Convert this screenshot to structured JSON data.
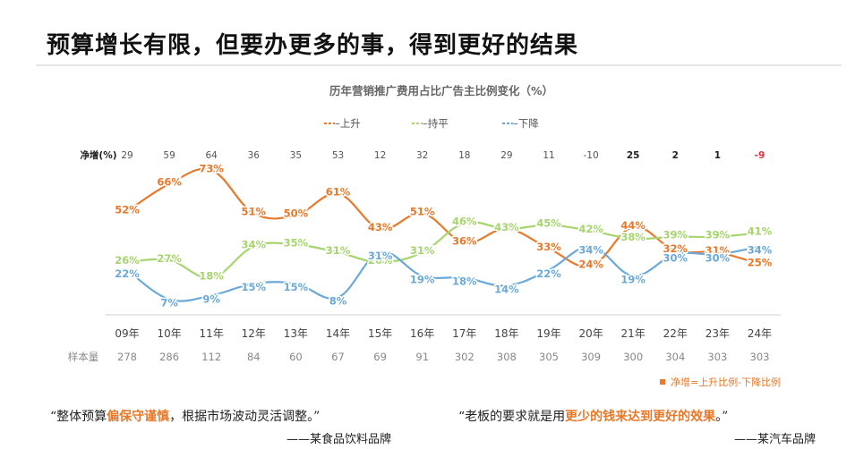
{
  "slide": {
    "title": "预算增长有限，但要办更多的事，得到更好的结果"
  },
  "chart_data": {
    "type": "line",
    "title": "历年营销推广费用占比广告主比例变化（%）",
    "categories": [
      "09年",
      "10年",
      "11年",
      "12年",
      "13年",
      "14年",
      "15年",
      "16年",
      "17年",
      "18年",
      "19年",
      "20年",
      "21年",
      "22年",
      "23年",
      "24年"
    ],
    "series": [
      {
        "name": "上升",
        "color": "#e8792b",
        "values": [
          52,
          66,
          73,
          51,
          50,
          61,
          43,
          51,
          36,
          43,
          33,
          24,
          44,
          32,
          31,
          25
        ]
      },
      {
        "name": "持平",
        "color": "#a6d46d",
        "values": [
          26,
          27,
          18,
          34,
          35,
          31,
          26,
          31,
          46,
          43,
          45,
          42,
          38,
          39,
          39,
          41
        ]
      },
      {
        "name": "下降",
        "color": "#6aa9d8",
        "values": [
          22,
          7,
          9,
          15,
          15,
          8,
          31,
          19,
          18,
          14,
          22,
          34,
          19,
          30,
          30,
          34
        ]
      }
    ],
    "legend_labels": [
      "–上升",
      "–持平",
      "–下降"
    ],
    "net_label": "净增(%)",
    "net_values": [
      "29",
      "59",
      "64",
      "36",
      "35",
      "53",
      "12",
      "32",
      "18",
      "29",
      "11",
      "-10",
      "25",
      "2",
      "1",
      "-9"
    ],
    "sample_label": "样本量",
    "sample_values": [
      "278",
      "286",
      "112",
      "84",
      "60",
      "67",
      "69",
      "91",
      "302",
      "308",
      "305",
      "309",
      "300",
      "304",
      "303",
      "303"
    ],
    "footnote": "净增=上升比例-下降比例",
    "ylim": [
      0,
      80
    ]
  },
  "quotes": [
    {
      "pre": "“整体预算",
      "hl": "偏保守谨慎",
      "post": "，根据市场波动灵活调整。”",
      "source": "——某食品饮料品牌"
    },
    {
      "pre": "“老板的要求就是用",
      "hl": "更少的钱来达到更好的效果",
      "post": "。”",
      "source": "——某汽车品牌"
    }
  ],
  "colors": {
    "accent": "#e8792b",
    "negative": "#e0303b",
    "muted": "#999999"
  }
}
